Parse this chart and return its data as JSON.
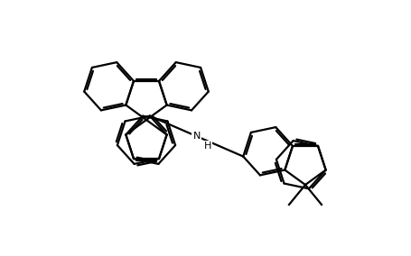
{
  "line_color": "#000000",
  "line_width": 1.6,
  "bg_color": "#ffffff",
  "figsize": [
    4.56,
    2.84
  ],
  "dpi": 100,
  "NH_fontsize": 8
}
